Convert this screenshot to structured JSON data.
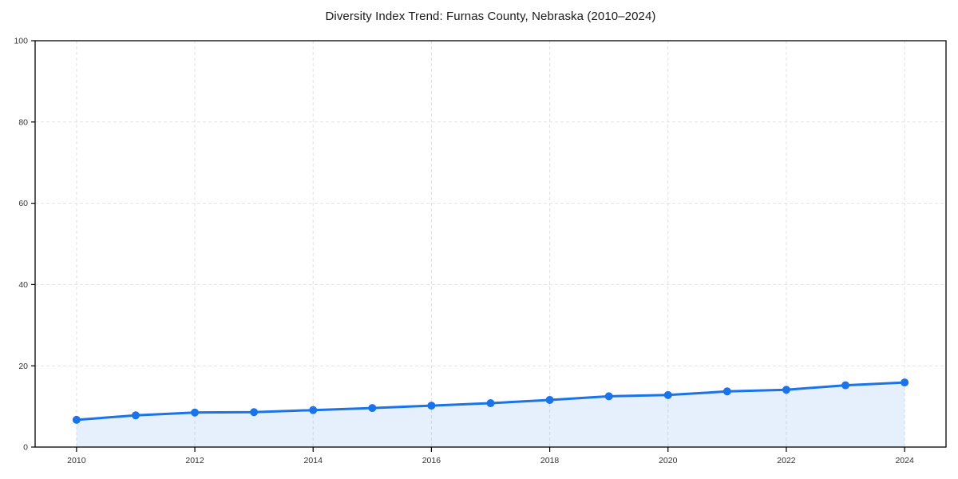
{
  "chart_data": {
    "type": "area",
    "title": "Diversity Index Trend: Furnas County, Nebraska (2010–2024)",
    "x": [
      2010,
      2011,
      2012,
      2013,
      2014,
      2015,
      2016,
      2017,
      2018,
      2019,
      2020,
      2021,
      2022,
      2023,
      2024
    ],
    "series": [
      {
        "name": "Diversity Index",
        "values": [
          6.7,
          7.8,
          8.5,
          8.6,
          9.1,
          9.6,
          10.2,
          10.8,
          11.6,
          12.5,
          12.8,
          13.7,
          14.1,
          15.2,
          15.9
        ]
      }
    ],
    "xlabel": "",
    "ylabel": "",
    "xlim": [
      2009.3,
      2024.7
    ],
    "ylim": [
      0,
      100
    ],
    "x_ticks": [
      2010,
      2012,
      2014,
      2016,
      2018,
      2020,
      2022,
      2024
    ],
    "y_ticks": [
      0,
      20,
      40,
      60,
      80,
      100
    ],
    "grid": true,
    "grid_style": "dashed",
    "legend": "none",
    "colors": {
      "line": "#1a73e8",
      "marker": "#1a73e8",
      "area_fill": "rgba(26,115,232,0.11)",
      "grid": "#e2e2e2",
      "axis": "#000000",
      "tick_label": "#333333",
      "title": "#1a1a1a",
      "background": "#ffffff"
    }
  }
}
